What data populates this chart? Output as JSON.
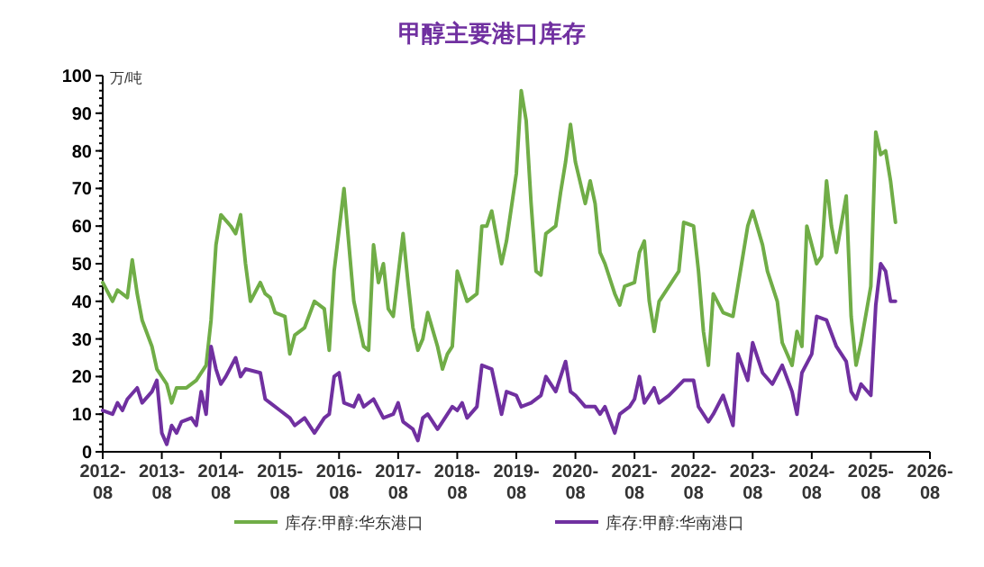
{
  "chart_data": {
    "type": "line",
    "title": "甲醇主要港口库存",
    "ylabel": "万/吨",
    "legend": "bottom",
    "grid": false,
    "line_style": "solid",
    "xlim": [
      "2012-08",
      "2026-08"
    ],
    "xticks": [
      "2012-08",
      "2013-08",
      "2014-08",
      "2015-08",
      "2016-08",
      "2017-08",
      "2018-08",
      "2019-08",
      "2020-08",
      "2021-08",
      "2022-08",
      "2023-08",
      "2024-08",
      "2025-08",
      "2026-08"
    ],
    "ylim": [
      0,
      100
    ],
    "yticks": [
      0,
      10,
      20,
      30,
      40,
      50,
      60,
      70,
      80,
      90,
      100
    ],
    "series": [
      {
        "name": "库存:甲醇:华东港口",
        "color": "#70ad47",
        "x": [
          "2012-08",
          "2012-10",
          "2012-11",
          "2013-01",
          "2013-02",
          "2013-03",
          "2013-04",
          "2013-06",
          "2013-07",
          "2013-09",
          "2013-10",
          "2013-11",
          "2014-01",
          "2014-03",
          "2014-05",
          "2014-06",
          "2014-07",
          "2014-08",
          "2014-10",
          "2014-11",
          "2014-12",
          "2015-01",
          "2015-02",
          "2015-04",
          "2015-05",
          "2015-06",
          "2015-07",
          "2015-09",
          "2015-10",
          "2015-11",
          "2016-01",
          "2016-03",
          "2016-05",
          "2016-06",
          "2016-07",
          "2016-09",
          "2016-10",
          "2016-11",
          "2017-01",
          "2017-02",
          "2017-03",
          "2017-04",
          "2017-05",
          "2017-06",
          "2017-07",
          "2017-09",
          "2017-10",
          "2017-11",
          "2017-12",
          "2018-01",
          "2018-02",
          "2018-04",
          "2018-05",
          "2018-06",
          "2018-07",
          "2018-08",
          "2018-10",
          "2018-12",
          "2019-01",
          "2019-02",
          "2019-03",
          "2019-05",
          "2019-06",
          "2019-08",
          "2019-09",
          "2019-10",
          "2019-11",
          "2019-12",
          "2020-01",
          "2020-02",
          "2020-04",
          "2020-05",
          "2020-06",
          "2020-07",
          "2020-08",
          "2020-10",
          "2020-11",
          "2020-12",
          "2021-01",
          "2021-02",
          "2021-04",
          "2021-05",
          "2021-06",
          "2021-08",
          "2021-09",
          "2021-10",
          "2021-11",
          "2021-12",
          "2022-01",
          "2022-03",
          "2022-05",
          "2022-06",
          "2022-08",
          "2022-09",
          "2022-10",
          "2022-11",
          "2022-12",
          "2023-02",
          "2023-04",
          "2023-06",
          "2023-07",
          "2023-08",
          "2023-10",
          "2023-11",
          "2023-12",
          "2024-01",
          "2024-02",
          "2024-04",
          "2024-05",
          "2024-06",
          "2024-07",
          "2024-09",
          "2024-10",
          "2024-11",
          "2024-12",
          "2025-01",
          "2025-03",
          "2025-04",
          "2025-05",
          "2025-06",
          "2025-08",
          "2025-09",
          "2025-10",
          "2025-11",
          "2025-12",
          "2026-01"
        ],
        "values": [
          45,
          40,
          43,
          41,
          51,
          42,
          35,
          28,
          22,
          18,
          13,
          17,
          17,
          19,
          23,
          35,
          55,
          63,
          60,
          58,
          63,
          50,
          40,
          45,
          42,
          41,
          37,
          36,
          26,
          31,
          33,
          40,
          38,
          27,
          48,
          70,
          55,
          40,
          28,
          27,
          55,
          45,
          50,
          38,
          36,
          58,
          45,
          33,
          27,
          30,
          37,
          28,
          22,
          26,
          28,
          48,
          40,
          42,
          60,
          60,
          64,
          50,
          56,
          74,
          96,
          88,
          66,
          48,
          47,
          58,
          60,
          69,
          77,
          87,
          77,
          66,
          72,
          66,
          53,
          50,
          42,
          39,
          44,
          45,
          53,
          56,
          40,
          32,
          40,
          44,
          48,
          61,
          60,
          48,
          32,
          23,
          42,
          37,
          36,
          52,
          60,
          64,
          55,
          48,
          44,
          40,
          29,
          23,
          32,
          28,
          60,
          50,
          52,
          72,
          60,
          53,
          68,
          36,
          23,
          29,
          44,
          85,
          79,
          80,
          72,
          61
        ]
      },
      {
        "name": "库存:甲醇:华南港口",
        "color": "#7030a0",
        "x": [
          "2012-08",
          "2012-10",
          "2012-11",
          "2012-12",
          "2013-01",
          "2013-03",
          "2013-04",
          "2013-06",
          "2013-07",
          "2013-08",
          "2013-09",
          "2013-10",
          "2013-11",
          "2013-12",
          "2014-02",
          "2014-03",
          "2014-04",
          "2014-05",
          "2014-06",
          "2014-07",
          "2014-08",
          "2014-09",
          "2014-11",
          "2014-12",
          "2015-01",
          "2015-04",
          "2015-05",
          "2015-06",
          "2015-08",
          "2015-10",
          "2015-11",
          "2016-01",
          "2016-03",
          "2016-05",
          "2016-06",
          "2016-07",
          "2016-08",
          "2016-09",
          "2016-11",
          "2016-12",
          "2017-01",
          "2017-03",
          "2017-05",
          "2017-07",
          "2017-08",
          "2017-09",
          "2017-11",
          "2017-12",
          "2018-01",
          "2018-02",
          "2018-04",
          "2018-05",
          "2018-07",
          "2018-08",
          "2018-09",
          "2018-10",
          "2018-12",
          "2019-01",
          "2019-03",
          "2019-05",
          "2019-06",
          "2019-08",
          "2019-09",
          "2019-11",
          "2020-01",
          "2020-02",
          "2020-04",
          "2020-06",
          "2020-07",
          "2020-08",
          "2020-10",
          "2020-12",
          "2021-01",
          "2021-02",
          "2021-04",
          "2021-05",
          "2021-07",
          "2021-08",
          "2021-09",
          "2021-10",
          "2021-12",
          "2022-01",
          "2022-03",
          "2022-06",
          "2022-08",
          "2022-09",
          "2022-11",
          "2022-12",
          "2023-02",
          "2023-04",
          "2023-05",
          "2023-07",
          "2023-08",
          "2023-10",
          "2023-12",
          "2024-02",
          "2024-04",
          "2024-05",
          "2024-06",
          "2024-08",
          "2024-09",
          "2024-11",
          "2025-01",
          "2025-03",
          "2025-04",
          "2025-05",
          "2025-06",
          "2025-08",
          "2025-09",
          "2025-10",
          "2025-11",
          "2025-12",
          "2026-01"
        ],
        "values": [
          11,
          10,
          13,
          11,
          14,
          17,
          13,
          16,
          19,
          5,
          2,
          7,
          5,
          8,
          9,
          7,
          16,
          10,
          28,
          22,
          18,
          20,
          25,
          20,
          22,
          21,
          14,
          13,
          11,
          9,
          7,
          9,
          5,
          9,
          10,
          20,
          21,
          13,
          12,
          15,
          12,
          14,
          9,
          10,
          13,
          8,
          6,
          3,
          9,
          10,
          6,
          8,
          12,
          11,
          13,
          9,
          12,
          23,
          22,
          10,
          16,
          15,
          12,
          13,
          15,
          20,
          16,
          24,
          16,
          15,
          12,
          12,
          10,
          12,
          5,
          10,
          12,
          14,
          20,
          13,
          17,
          13,
          15,
          19,
          19,
          12,
          8,
          10,
          15,
          7,
          26,
          19,
          29,
          21,
          18,
          23,
          16,
          10,
          21,
          26,
          36,
          35,
          28,
          24,
          16,
          14,
          18,
          15,
          39,
          50,
          48,
          40,
          40
        ]
      }
    ]
  }
}
